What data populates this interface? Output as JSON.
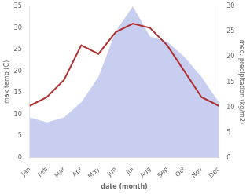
{
  "chart_data": {
    "type": "line",
    "categories": [
      "Jan",
      "Feb",
      "Mar",
      "Apr",
      "May",
      "Jun",
      "Jul",
      "Aug",
      "Sep",
      "Oct",
      "Nov",
      "Dec"
    ],
    "series": [
      {
        "type": "area",
        "color": "#aab4e8",
        "axis": "y2",
        "values": [
          8,
          7,
          8,
          11,
          16,
          25,
          30,
          24,
          23,
          20,
          16,
          11
        ]
      },
      {
        "type": "line",
        "color": "#b03030",
        "values": [
          12,
          14,
          18,
          26,
          24,
          29,
          31,
          30,
          26,
          20,
          14,
          12
        ]
      }
    ],
    "xlabel": "date (month)",
    "ylabel": "max temp (C)",
    "y2label": "med. precipitation (kg/m2)",
    "ylim": [
      0,
      35
    ],
    "yticks": [
      0,
      5,
      10,
      15,
      20,
      25,
      30,
      35
    ],
    "y2lim": [
      0,
      30
    ],
    "y2ticks": [
      0,
      5,
      10,
      15,
      20,
      25,
      30
    ],
    "grid": false
  }
}
